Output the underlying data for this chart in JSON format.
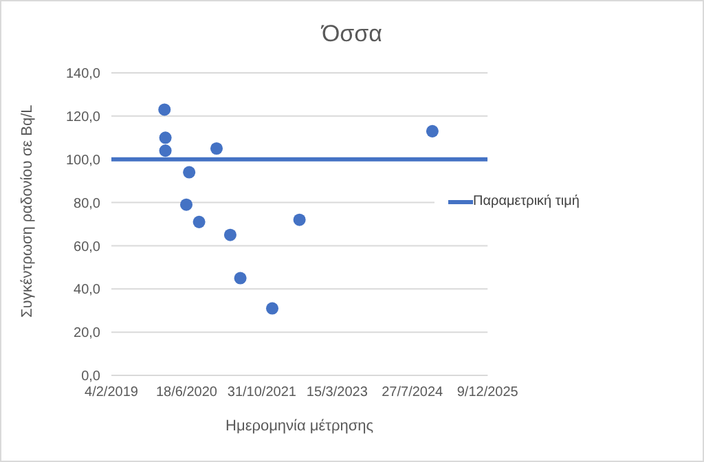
{
  "chart_data": {
    "type": "scatter",
    "title": "Όσσα",
    "xlabel": "Ημερομηνία μέτρησης",
    "ylabel": "Συγκέντρωση ραδονίου σε Bq/L",
    "series": [
      {
        "marker": "circle",
        "color": "#4472c4",
        "x": [
          "2020-01-23",
          "2020-01-29",
          "2020-01-29",
          "2020-06-16",
          "2020-07-05",
          "2020-09-09",
          "2021-01-03",
          "2021-04-04",
          "2021-06-10",
          "2022-01-08",
          "2022-07-08",
          "2024-12-07"
        ],
        "values": [
          123,
          110,
          104,
          79,
          94,
          71,
          105,
          65,
          45,
          31,
          72,
          113
        ]
      },
      {
        "type": "line",
        "marker": "none",
        "name": "Παραμετρική τιμή",
        "color": "#4472c4",
        "x": [
          "2019-02-04",
          "2025-12-09"
        ],
        "values": [
          100,
          100
        ]
      }
    ],
    "xlim": [
      "2019-02-04",
      "2025-12-09"
    ],
    "xticks": [
      {
        "value": "2019-02-04",
        "label": "4/2/2019"
      },
      {
        "value": "2020-06-18",
        "label": "18/6/2020"
      },
      {
        "value": "2021-10-31",
        "label": "31/10/2021"
      },
      {
        "value": "2023-03-15",
        "label": "15/3/2023"
      },
      {
        "value": "2024-07-27",
        "label": "27/7/2024"
      },
      {
        "value": "2025-12-09",
        "label": "9/12/2025"
      }
    ],
    "ylim": [
      0,
      140
    ],
    "yticks": [
      {
        "value": 0,
        "label": "0,0"
      },
      {
        "value": 20,
        "label": "20,0"
      },
      {
        "value": 40,
        "label": "40,0"
      },
      {
        "value": 60,
        "label": "60,0"
      },
      {
        "value": 80,
        "label": "80,0"
      },
      {
        "value": 100,
        "label": "100,0"
      },
      {
        "value": 120,
        "label": "120,0"
      },
      {
        "value": 140,
        "label": "140,0"
      }
    ],
    "grid": "y",
    "legend": "right"
  }
}
